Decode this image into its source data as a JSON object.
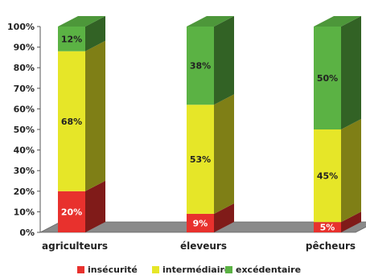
{
  "chart_data": {
    "type": "bar",
    "stacked": true,
    "three_d": true,
    "categories": [
      "agriculteurs",
      "éleveurs",
      "pêcheurs"
    ],
    "y_ticks": [
      "0%",
      "10%",
      "20%",
      "30%",
      "40%",
      "50%",
      "60%",
      "70%",
      "80%",
      "90%",
      "100%"
    ],
    "ylim": [
      0,
      100
    ],
    "legend_position": "bottom",
    "series": [
      {
        "name": "insécurité",
        "color": "#e8312d",
        "values": [
          20,
          9,
          5
        ],
        "labels": [
          "20%",
          "9%",
          "5%"
        ]
      },
      {
        "name": "intermédiaire",
        "color": "#e6e628",
        "values": [
          68,
          53,
          45
        ],
        "labels": [
          "68%",
          "53%",
          "45%"
        ]
      },
      {
        "name": "excédentaire",
        "color": "#5bb244",
        "values": [
          12,
          38,
          50
        ],
        "labels": [
          "12%",
          "38%",
          "50%"
        ]
      }
    ],
    "floor_color": "#8a8a8a"
  }
}
